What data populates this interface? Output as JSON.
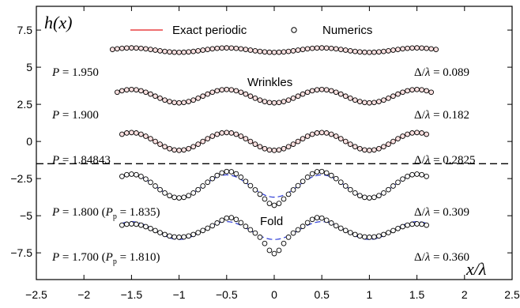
{
  "chart_data": {
    "type": "line",
    "xlabel": "x/λ",
    "ylabel": "h(x)",
    "xlim": [
      -2.5,
      2.5
    ],
    "ylim": [
      -9.3,
      9.1
    ],
    "xticks": [
      "−2.5",
      "−2",
      "−1.5",
      "−1",
      "−0.5",
      "0",
      "0.5",
      "1",
      "1.5",
      "2",
      "2.5"
    ],
    "yticks": [
      "−7.5",
      "−5",
      "−2.5",
      "0",
      "2.5",
      "5",
      "7.5"
    ],
    "legend": {
      "placement": "top",
      "exact_label": "Exact periodic",
      "numerics_label": "Numerics"
    },
    "colors": {
      "exact": "#e41a1c",
      "fold_exact": "#2b3bd6",
      "markers": "#000000"
    },
    "separator_y": -1.5,
    "annotations": {
      "wrinkles": "Wrinkles",
      "fold": "Fold"
    },
    "series": [
      {
        "P_label": "P = 1.950",
        "P_main": "1.950",
        "Pp": "",
        "ratio": "0.089",
        "offset": 6.15,
        "amp": 0.15,
        "x_range": [
          -1.7,
          1.7
        ],
        "regime": "wrinkle"
      },
      {
        "P_label": "P = 1.900",
        "P_main": "1.900",
        "Pp": "",
        "ratio": "0.182",
        "offset": 3.05,
        "amp": 0.45,
        "x_range": [
          -1.65,
          1.65
        ],
        "regime": "wrinkle"
      },
      {
        "P_label": "P = 1.84843",
        "P_main": "1.84843",
        "Pp": "",
        "ratio": "0.2825",
        "offset": 0.0,
        "amp": 0.6,
        "x_range": [
          -1.6,
          1.6
        ],
        "regime": "wrinkle"
      },
      {
        "P_label": "P = 1.800 (Pp = 1.835)",
        "P_main": "1.800",
        "Pp": "1.835",
        "ratio": "0.309",
        "offset": -3.0,
        "amp": 0.8,
        "fold_depth": 0.5,
        "exact_amp": 0.75,
        "x_range": [
          -1.6,
          1.6
        ],
        "regime": "fold"
      },
      {
        "P_label": "P = 1.700 (Pp = 1.810)",
        "P_main": "1.700",
        "Pp": "1.810",
        "ratio": "0.360",
        "offset": -6.0,
        "amp": 0.45,
        "fold_depth": 1.1,
        "exact_amp": 0.6,
        "x_range": [
          -1.6,
          1.6
        ],
        "regime": "fold"
      }
    ]
  }
}
